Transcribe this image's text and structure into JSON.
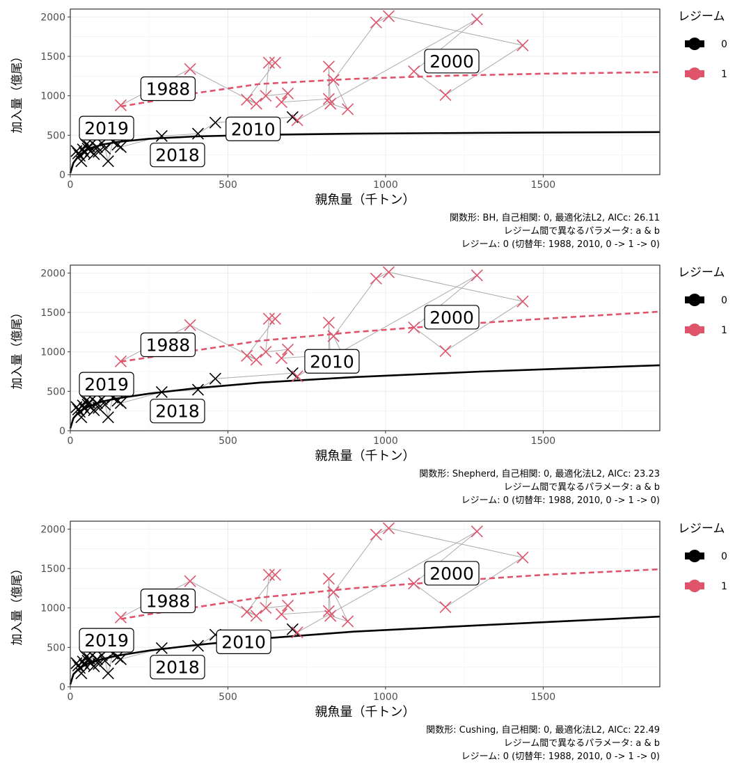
{
  "colors": {
    "regime0": "#000000",
    "regime1": "#df536b",
    "path": "#aaaaaa",
    "grid": "#ebebeb",
    "border": "#333333"
  },
  "legend": {
    "title": "レジーム",
    "items": [
      "0",
      "1"
    ]
  },
  "chart_data": [
    {
      "type": "scatter",
      "xlabel": "親魚量（千トン）",
      "ylabel": "加入量（億尾）",
      "xlim": [
        0,
        1870
      ],
      "ylim": [
        0,
        2100
      ],
      "xticks": [
        0,
        500,
        1000,
        1500
      ],
      "yticks": [
        0,
        500,
        1000,
        1500,
        2000
      ],
      "grid": true,
      "legend_position": "right",
      "caption": [
        "関数形: BH, 自己相関: 0, 最適化法L2, AICc: 26.11",
        "レジーム間で異なるパラメータ: a & b",
        "レジーム: 0 (切替年: 1988, 2010, 0 -> 1 -> 0)"
      ],
      "series": [
        {
          "name": "0",
          "points": [
            [
              20,
              300
            ],
            [
              25,
              270
            ],
            [
              30,
              240
            ],
            [
              35,
              170
            ],
            [
              40,
              320
            ],
            [
              45,
              280
            ],
            [
              50,
              380
            ],
            [
              55,
              330
            ],
            [
              60,
              360
            ],
            [
              65,
              300
            ],
            [
              70,
              400
            ],
            [
              75,
              260
            ],
            [
              85,
              350
            ],
            [
              90,
              290
            ],
            [
              100,
              400
            ],
            [
              110,
              330
            ],
            [
              120,
              170
            ],
            [
              135,
              420
            ],
            [
              150,
              380
            ],
            [
              160,
              350
            ],
            [
              290,
              490
            ],
            [
              405,
              520
            ],
            [
              460,
              660
            ],
            [
              705,
              730
            ]
          ]
        },
        {
          "name": "1",
          "points": [
            [
              160,
              880
            ],
            [
              380,
              1340
            ],
            [
              560,
              950
            ],
            [
              590,
              900
            ],
            [
              620,
              1000
            ],
            [
              630,
              1420
            ],
            [
              650,
              1420
            ],
            [
              670,
              920
            ],
            [
              690,
              1030
            ],
            [
              720,
              690
            ],
            [
              820,
              960
            ],
            [
              820,
              1370
            ],
            [
              825,
              900
            ],
            [
              835,
              1200
            ],
            [
              880,
              830
            ],
            [
              970,
              1930
            ],
            [
              1010,
              2010
            ],
            [
              1090,
              1310
            ],
            [
              1190,
              1010
            ],
            [
              1290,
              1970
            ],
            [
              1435,
              1640
            ]
          ]
        }
      ],
      "fit_curves": [
        {
          "name": "0",
          "x": [
            0,
            10,
            30,
            60,
            100,
            150,
            250,
            400,
            600,
            900,
            1300,
            1870
          ],
          "y": [
            20,
            150,
            255,
            330,
            380,
            415,
            455,
            485,
            505,
            520,
            530,
            540
          ],
          "style": "solid"
        },
        {
          "name": "1",
          "x": [
            160,
            250,
            400,
            600,
            900,
            1200,
            1500,
            1870
          ],
          "y": [
            865,
            925,
            1035,
            1150,
            1215,
            1255,
            1280,
            1300
          ],
          "style": "dashed"
        }
      ],
      "labels": [
        {
          "text": "1988",
          "x": 310,
          "y": 1090
        },
        {
          "text": "2000",
          "x": 1210,
          "y": 1440
        },
        {
          "text": "2010",
          "x": 580,
          "y": 580
        },
        {
          "text": "2019",
          "x": 115,
          "y": 590
        },
        {
          "text": "2018",
          "x": 340,
          "y": 250
        }
      ]
    },
    {
      "type": "scatter",
      "xlabel": "親魚量（千トン）",
      "ylabel": "加入量（億尾）",
      "xlim": [
        0,
        1870
      ],
      "ylim": [
        0,
        2100
      ],
      "xticks": [
        0,
        500,
        1000,
        1500
      ],
      "yticks": [
        0,
        500,
        1000,
        1500,
        2000
      ],
      "grid": true,
      "legend_position": "right",
      "caption": [
        "関数形: Shepherd, 自己相関: 0, 最適化法L2, AICc: 23.23",
        "レジーム間で異なるパラメータ: a & b",
        "レジーム: 0 (切替年: 1988, 2010, 0 -> 1 -> 0)"
      ],
      "series": [
        {
          "name": "0",
          "points": [
            [
              20,
              300
            ],
            [
              25,
              270
            ],
            [
              30,
              240
            ],
            [
              35,
              170
            ],
            [
              40,
              320
            ],
            [
              45,
              280
            ],
            [
              50,
              380
            ],
            [
              55,
              330
            ],
            [
              60,
              360
            ],
            [
              65,
              300
            ],
            [
              70,
              400
            ],
            [
              75,
              260
            ],
            [
              85,
              350
            ],
            [
              90,
              290
            ],
            [
              100,
              400
            ],
            [
              110,
              330
            ],
            [
              120,
              170
            ],
            [
              135,
              420
            ],
            [
              150,
              380
            ],
            [
              160,
              350
            ],
            [
              290,
              490
            ],
            [
              405,
              520
            ],
            [
              460,
              660
            ],
            [
              705,
              730
            ]
          ]
        },
        {
          "name": "1",
          "points": [
            [
              160,
              880
            ],
            [
              380,
              1340
            ],
            [
              560,
              950
            ],
            [
              590,
              900
            ],
            [
              620,
              1000
            ],
            [
              630,
              1420
            ],
            [
              650,
              1420
            ],
            [
              670,
              920
            ],
            [
              690,
              1030
            ],
            [
              720,
              690
            ],
            [
              820,
              960
            ],
            [
              820,
              1370
            ],
            [
              825,
              900
            ],
            [
              835,
              1200
            ],
            [
              880,
              830
            ],
            [
              970,
              1930
            ],
            [
              1010,
              2010
            ],
            [
              1090,
              1310
            ],
            [
              1190,
              1010
            ],
            [
              1290,
              1970
            ],
            [
              1435,
              1640
            ]
          ]
        }
      ],
      "fit_curves": [
        {
          "name": "0",
          "x": [
            0,
            10,
            30,
            60,
            100,
            150,
            250,
            400,
            600,
            900,
            1300,
            1870
          ],
          "y": [
            30,
            160,
            250,
            310,
            370,
            410,
            470,
            540,
            610,
            680,
            750,
            830
          ],
          "style": "solid"
        },
        {
          "name": "1",
          "x": [
            160,
            250,
            400,
            600,
            900,
            1200,
            1500,
            1870
          ],
          "y": [
            875,
            930,
            1020,
            1140,
            1250,
            1340,
            1420,
            1510
          ],
          "style": "dashed"
        }
      ],
      "labels": [
        {
          "text": "1988",
          "x": 310,
          "y": 1090
        },
        {
          "text": "2000",
          "x": 1210,
          "y": 1440
        },
        {
          "text": "2010",
          "x": 830,
          "y": 880
        },
        {
          "text": "2019",
          "x": 115,
          "y": 590
        },
        {
          "text": "2018",
          "x": 340,
          "y": 250
        }
      ]
    },
    {
      "type": "scatter",
      "xlabel": "親魚量（千トン）",
      "ylabel": "加入量（億尾）",
      "xlim": [
        0,
        1870
      ],
      "ylim": [
        0,
        2100
      ],
      "xticks": [
        0,
        500,
        1000,
        1500
      ],
      "yticks": [
        0,
        500,
        1000,
        1500,
        2000
      ],
      "grid": true,
      "legend_position": "right",
      "caption": [
        "関数形: Cushing, 自己相関: 0, 最適化法L2, AICc: 22.49",
        "レジーム間で異なるパラメータ: a & b",
        "レジーム: 0 (切替年: 1988, 2010, 0 -> 1 -> 0)"
      ],
      "series": [
        {
          "name": "0",
          "points": [
            [
              20,
              300
            ],
            [
              25,
              270
            ],
            [
              30,
              240
            ],
            [
              35,
              170
            ],
            [
              40,
              320
            ],
            [
              45,
              280
            ],
            [
              50,
              380
            ],
            [
              55,
              330
            ],
            [
              60,
              360
            ],
            [
              65,
              300
            ],
            [
              70,
              400
            ],
            [
              75,
              260
            ],
            [
              85,
              350
            ],
            [
              90,
              290
            ],
            [
              100,
              400
            ],
            [
              110,
              330
            ],
            [
              120,
              170
            ],
            [
              135,
              420
            ],
            [
              150,
              380
            ],
            [
              160,
              350
            ],
            [
              290,
              490
            ],
            [
              405,
              520
            ],
            [
              460,
              660
            ],
            [
              705,
              730
            ]
          ]
        },
        {
          "name": "1",
          "points": [
            [
              160,
              880
            ],
            [
              380,
              1340
            ],
            [
              560,
              950
            ],
            [
              590,
              900
            ],
            [
              620,
              1000
            ],
            [
              630,
              1420
            ],
            [
              650,
              1420
            ],
            [
              670,
              920
            ],
            [
              690,
              1030
            ],
            [
              720,
              690
            ],
            [
              820,
              960
            ],
            [
              820,
              1370
            ],
            [
              825,
              900
            ],
            [
              835,
              1200
            ],
            [
              880,
              830
            ],
            [
              970,
              1930
            ],
            [
              1010,
              2010
            ],
            [
              1090,
              1310
            ],
            [
              1190,
              1010
            ],
            [
              1290,
              1970
            ],
            [
              1435,
              1640
            ]
          ]
        }
      ],
      "fit_curves": [
        {
          "name": "0",
          "x": [
            0,
            10,
            30,
            60,
            100,
            150,
            250,
            400,
            600,
            900,
            1300,
            1870
          ],
          "y": [
            30,
            160,
            240,
            300,
            350,
            395,
            460,
            530,
            610,
            700,
            780,
            890
          ],
          "style": "solid"
        },
        {
          "name": "1",
          "x": [
            160,
            250,
            400,
            600,
            900,
            1200,
            1500,
            1870
          ],
          "y": [
            860,
            920,
            1010,
            1130,
            1250,
            1340,
            1420,
            1490
          ],
          "style": "dashed"
        }
      ],
      "labels": [
        {
          "text": "1988",
          "x": 310,
          "y": 1090
        },
        {
          "text": "2000",
          "x": 1210,
          "y": 1440
        },
        {
          "text": "2010",
          "x": 550,
          "y": 570
        },
        {
          "text": "2019",
          "x": 115,
          "y": 590
        },
        {
          "text": "2018",
          "x": 340,
          "y": 250
        }
      ]
    }
  ]
}
